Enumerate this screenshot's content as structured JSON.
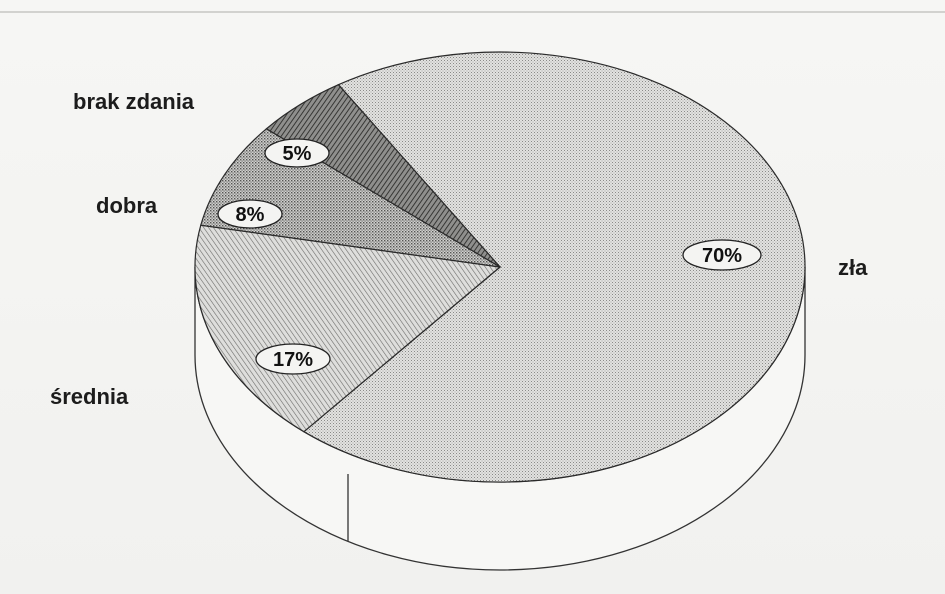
{
  "chart_data": {
    "type": "pie",
    "style": "3d-hatched",
    "categories": [
      "zła",
      "średnia",
      "dobra",
      "brak zdania"
    ],
    "values": [
      70,
      17,
      8,
      5
    ],
    "value_labels": [
      "70%",
      "17%",
      "8%",
      "5%"
    ],
    "patterns": [
      "fine-dots",
      "diagonal-lines",
      "dense-dots",
      "dark-hatch"
    ]
  }
}
